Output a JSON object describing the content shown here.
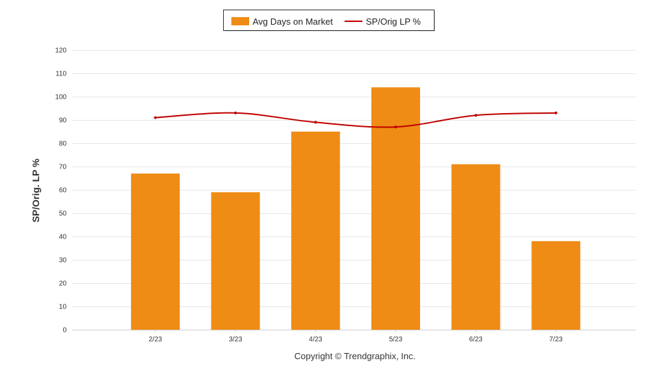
{
  "chart_data": {
    "type": "bar",
    "categories": [
      "2/23",
      "3/23",
      "4/23",
      "5/23",
      "6/23",
      "7/23"
    ],
    "series": [
      {
        "name": "Avg Days on Market",
        "type": "bar",
        "values": [
          67,
          59,
          85,
          104,
          71,
          38
        ]
      },
      {
        "name": "SP/Orig LP %",
        "type": "line",
        "values": [
          91,
          93,
          89,
          87,
          92,
          93
        ]
      }
    ],
    "ylabel": "SP/Orig. LP %",
    "ylim": [
      0,
      120
    ],
    "yticks": [
      0,
      10,
      20,
      30,
      40,
      50,
      60,
      70,
      80,
      90,
      100,
      110,
      120
    ],
    "grid": true,
    "legend_position": "top-center",
    "colors": {
      "bar": "#EF8C15",
      "line": "#C00000",
      "grid": "#E6E6E6"
    }
  },
  "footer": {
    "credit": "Copyright © Trendgraphix, Inc."
  }
}
